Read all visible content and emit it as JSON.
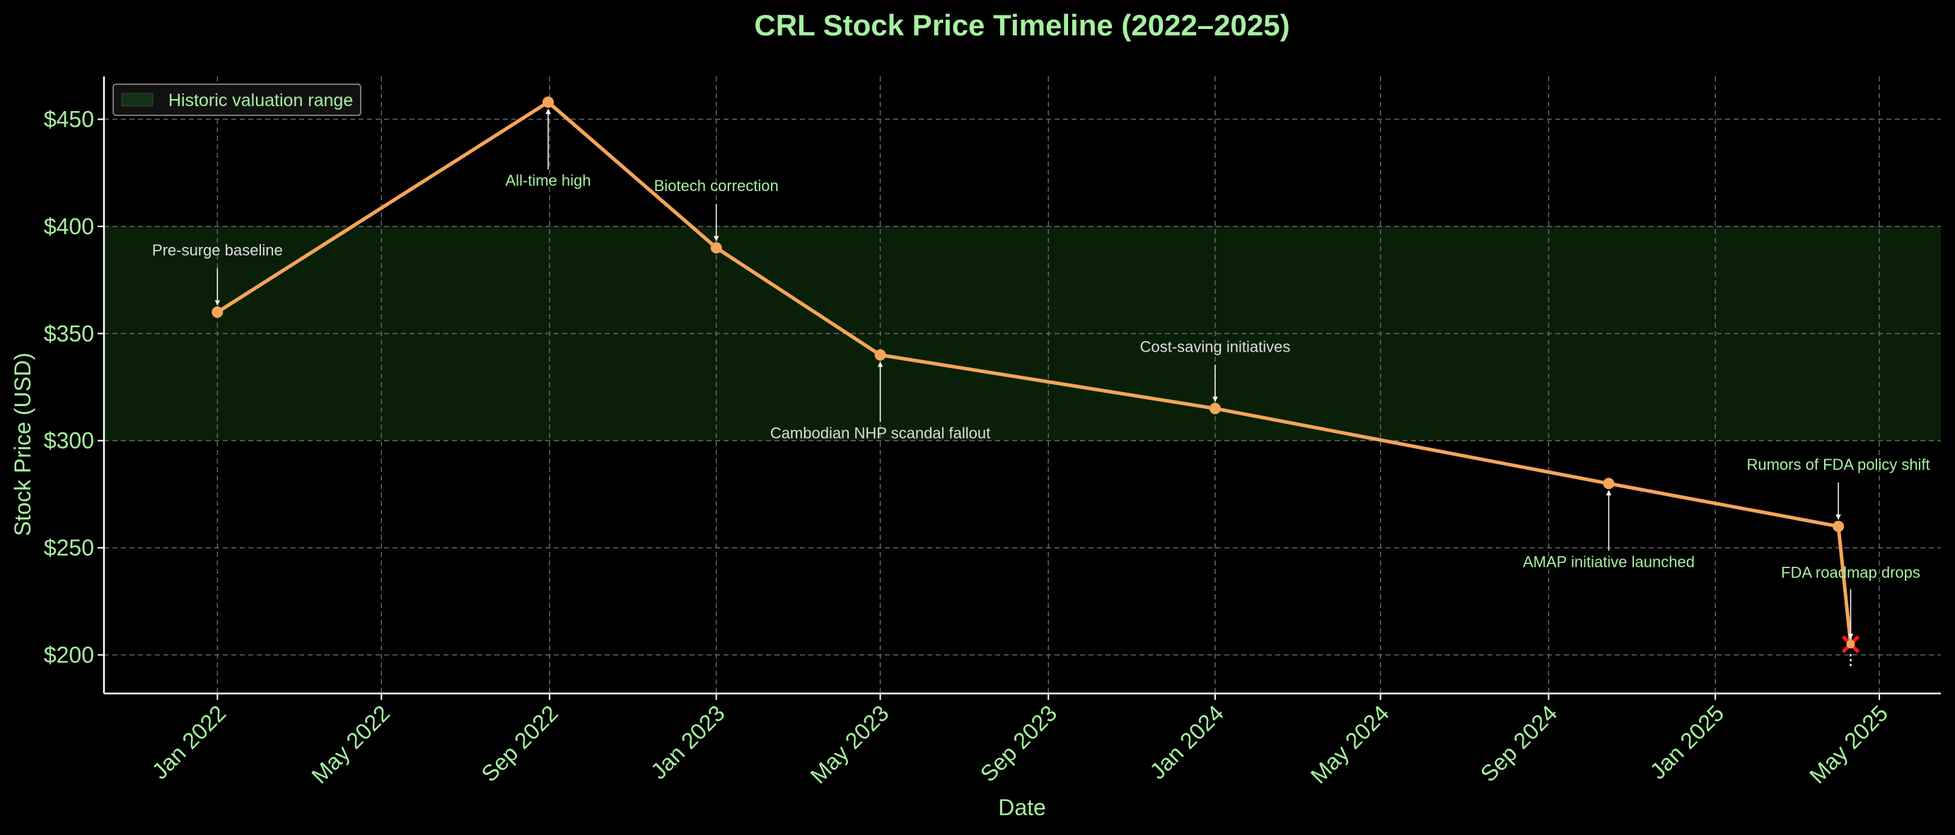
{
  "chart_data": {
    "type": "line",
    "title": "CRL Stock Price Timeline (2022–2025)",
    "xlabel": "Date",
    "ylabel": "Stock Price (USD)",
    "xlim": [
      "2021-10-10",
      "2025-06-15"
    ],
    "ylim": [
      182,
      470
    ],
    "grid": true,
    "legend_position": "top-left",
    "y_ticks": [
      {
        "value": 200,
        "label": "$200"
      },
      {
        "value": 250,
        "label": "$250"
      },
      {
        "value": 300,
        "label": "$300"
      },
      {
        "value": 350,
        "label": "$350"
      },
      {
        "value": 400,
        "label": "$400"
      },
      {
        "value": 450,
        "label": "$450"
      }
    ],
    "x_ticks": [
      {
        "date": "2022-01-01",
        "label": "Jan 2022"
      },
      {
        "date": "2022-05-01",
        "label": "May 2022"
      },
      {
        "date": "2022-09-01",
        "label": "Sep 2022"
      },
      {
        "date": "2023-01-01",
        "label": "Jan 2023"
      },
      {
        "date": "2023-05-01",
        "label": "May 2023"
      },
      {
        "date": "2023-09-01",
        "label": "Sep 2023"
      },
      {
        "date": "2024-01-01",
        "label": "Jan 2024"
      },
      {
        "date": "2024-05-01",
        "label": "May 2024"
      },
      {
        "date": "2024-09-01",
        "label": "Sep 2024"
      },
      {
        "date": "2025-01-01",
        "label": "Jan 2025"
      },
      {
        "date": "2025-05-01",
        "label": "May 2025"
      }
    ],
    "band": {
      "name": "Historic valuation range",
      "y0": 300,
      "y1": 400
    },
    "series": [
      {
        "points": [
          {
            "date": "2022-01-01",
            "value": 360
          },
          {
            "date": "2022-08-31",
            "value": 458
          },
          {
            "date": "2023-01-01",
            "value": 390
          },
          {
            "date": "2023-05-01",
            "value": 340
          },
          {
            "date": "2024-01-01",
            "value": 315
          },
          {
            "date": "2024-10-15",
            "value": 280
          },
          {
            "date": "2025-04-01",
            "value": 260
          },
          {
            "date": "2025-04-10",
            "value": 205
          }
        ]
      }
    ],
    "annotations": [
      {
        "text": "Pre-surge baseline",
        "date": "2022-01-01",
        "value": 360,
        "placement": "above",
        "color": "#dddddd"
      },
      {
        "text": "All-time high",
        "date": "2022-08-31",
        "value": 458,
        "placement": "below",
        "color": "#a6f0a0"
      },
      {
        "text": "Biotech correction",
        "date": "2023-01-01",
        "value": 390,
        "placement": "above",
        "color": "#a6f0a0"
      },
      {
        "text": "Cambodian NHP scandal fallout",
        "date": "2023-05-01",
        "value": 340,
        "placement": "below",
        "color": "#dddddd"
      },
      {
        "text": "Cost-saving initiatives",
        "date": "2024-01-01",
        "value": 315,
        "placement": "above",
        "color": "#dddddd"
      },
      {
        "text": "AMAP initiative launched",
        "date": "2024-10-15",
        "value": 280,
        "placement": "below",
        "color": "#a6f0a0"
      },
      {
        "text": "Rumors of FDA policy shift",
        "date": "2025-04-01",
        "value": 260,
        "placement": "above",
        "color": "#a6f0a0"
      },
      {
        "text": "FDA roadmap drops",
        "date": "2025-04-10",
        "value": 205,
        "placement": "above-large",
        "color": "#a6f0a0"
      }
    ],
    "colors": {
      "line": "#f5a55a",
      "band": "#0a1f08",
      "text": "#a6f0a0",
      "grid": "#666666",
      "crash_marker": "#ff1a1a"
    }
  }
}
